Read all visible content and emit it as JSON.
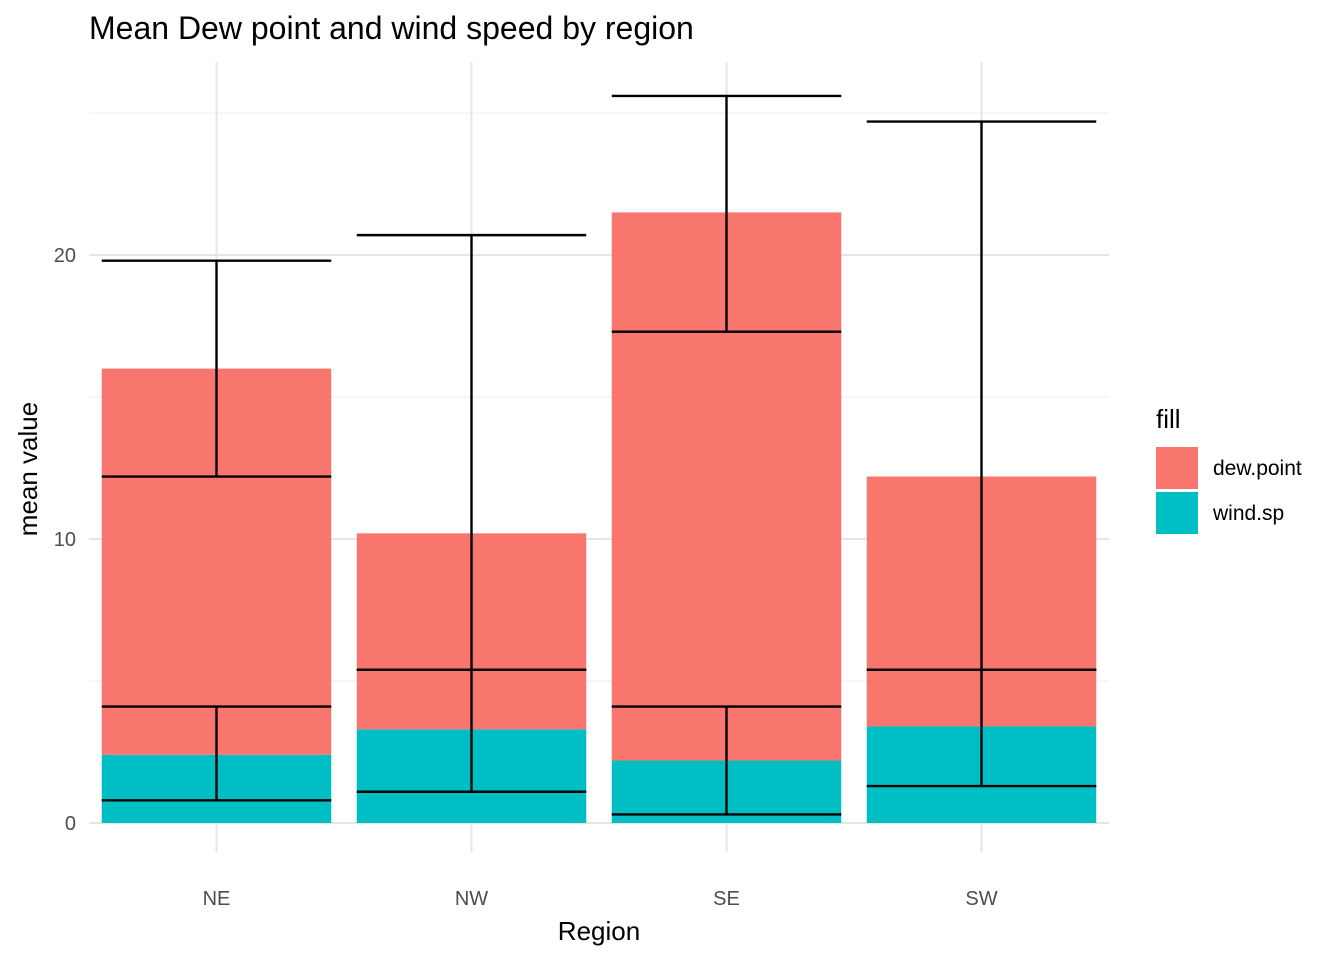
{
  "chart_data": {
    "type": "bar",
    "stacked": true,
    "title": "Mean Dew point and wind speed by region",
    "xlabel": "Region",
    "ylabel": "mean value",
    "categories": [
      "NE",
      "NW",
      "SE",
      "SW"
    ],
    "y_ticks": [
      0,
      10,
      20
    ],
    "y_tick_labels": [
      "0",
      "10",
      "20"
    ],
    "ylim": [
      -1.1,
      27.4
    ],
    "grid": true,
    "legend": {
      "title": "fill",
      "position": "right",
      "entries": [
        "dew.point",
        "wind.sp"
      ]
    },
    "series": [
      {
        "name": "dew.point",
        "color": "#F8766D",
        "values": [
          13.6,
          6.9,
          19.3,
          8.8
        ]
      },
      {
        "name": "wind.sp",
        "color": "#00BFC4",
        "values": [
          2.4,
          3.3,
          2.2,
          3.4
        ]
      }
    ],
    "error_bars": [
      {
        "series": "dew.point",
        "ymin": [
          12.2,
          5.4,
          17.3,
          5.4
        ],
        "ymax": [
          19.8,
          20.7,
          25.6,
          24.7
        ]
      },
      {
        "series": "wind.sp",
        "ymin": [
          0.8,
          1.1,
          0.3,
          1.3
        ],
        "ymax": [
          4.1,
          5.4,
          4.1,
          5.4
        ]
      }
    ]
  }
}
